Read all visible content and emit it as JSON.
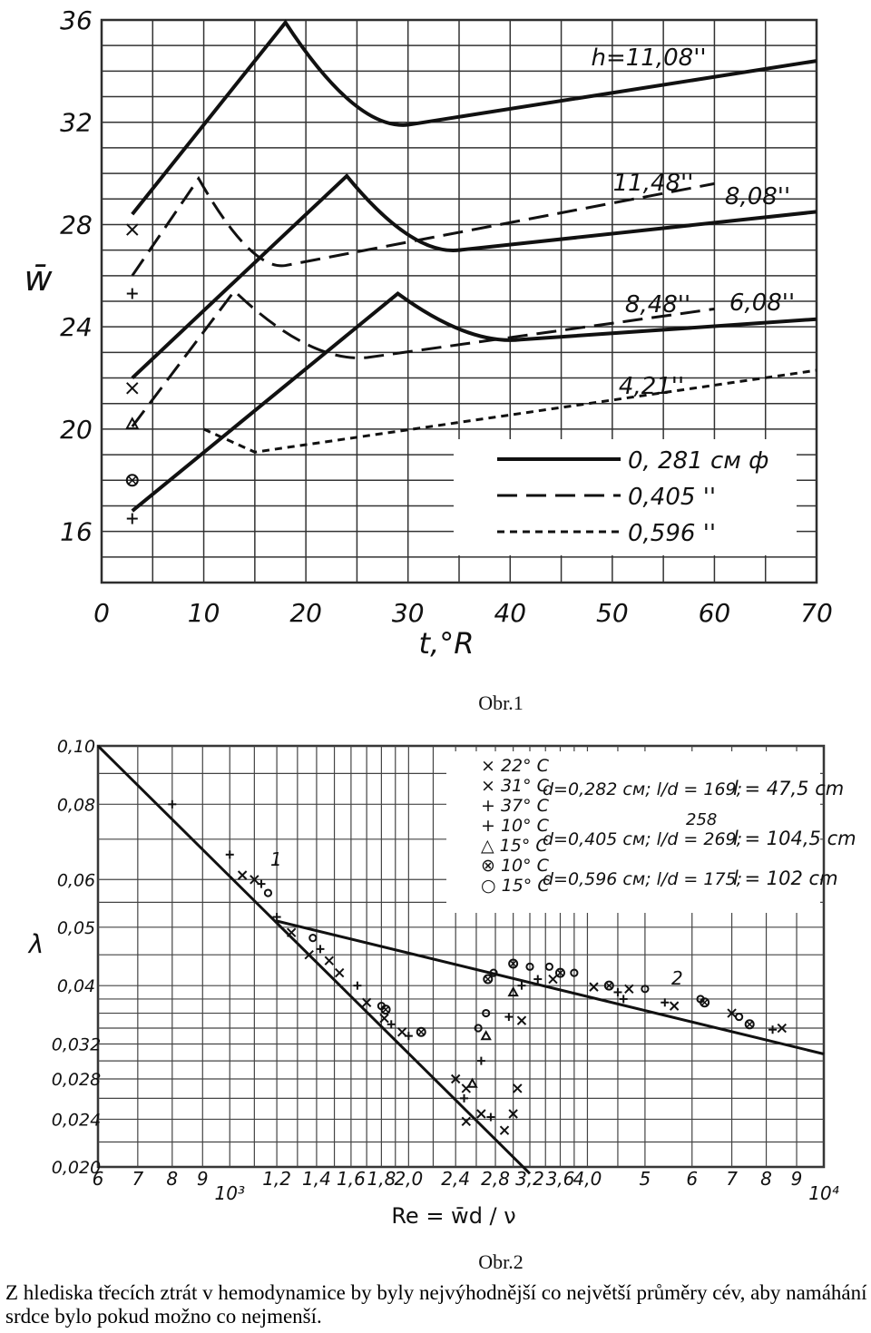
{
  "chart_data": [
    {
      "type": "line",
      "figure_label": "Obr.1",
      "xlabel": "t,°R",
      "ylabel": "w̄",
      "xlim": [
        0,
        70
      ],
      "ylim": [
        14,
        36
      ],
      "x_ticks": [
        "0",
        "10",
        "20",
        "30",
        "40",
        "50",
        "60",
        "70"
      ],
      "y_ticks": [
        "16",
        "20",
        "24",
        "28",
        "32",
        "36"
      ],
      "grid": true,
      "legend_position": "bottom-right",
      "legend": [
        {
          "style": "solid",
          "label": "0, 281 см ф"
        },
        {
          "style": "dashed",
          "label": "0,405 ''"
        },
        {
          "style": "dotted",
          "label": "0,596 ''"
        }
      ],
      "series": [
        {
          "style": "solid",
          "label": "h=11,08''",
          "x": [
            3,
            18,
            30,
            70
          ],
          "y": [
            28.4,
            35.9,
            31.9,
            34.4
          ]
        },
        {
          "style": "dashed",
          "label": "11,48''",
          "x": [
            3,
            9.5,
            18,
            60
          ],
          "y": [
            26.0,
            29.8,
            26.4,
            29.6
          ]
        },
        {
          "style": "solid",
          "label": "8,08''",
          "x": [
            3,
            24,
            35,
            70
          ],
          "y": [
            22.0,
            29.9,
            27.0,
            28.5
          ]
        },
        {
          "style": "dashed",
          "label": "8,48''",
          "x": [
            3,
            13,
            26,
            60
          ],
          "y": [
            20.1,
            25.4,
            22.8,
            24.7
          ]
        },
        {
          "style": "solid",
          "label": "6,08''",
          "x": [
            3,
            29,
            41,
            70
          ],
          "y": [
            16.8,
            25.3,
            23.5,
            24.3
          ]
        },
        {
          "style": "dotted",
          "label": "4,21''",
          "x": [
            10,
            15,
            70
          ],
          "y": [
            20.0,
            19.1,
            22.3
          ]
        }
      ],
      "markers": [
        {
          "symbol": "×",
          "x": 3,
          "y": 27.8
        },
        {
          "symbol": "+",
          "x": 3,
          "y": 25.3
        },
        {
          "symbol": "×",
          "x": 3,
          "y": 21.6
        },
        {
          "symbol": "△",
          "x": 3,
          "y": 20.2
        },
        {
          "symbol": "⊗",
          "x": 3,
          "y": 18.0
        },
        {
          "symbol": "+",
          "x": 3,
          "y": 16.5
        }
      ]
    },
    {
      "type": "scatter",
      "figure_label": "Obr.2",
      "xlabel": "Re = w̄d / ν",
      "ylabel": "λ",
      "x_scale": "log",
      "y_scale": "log",
      "xlim": [
        600,
        10000
      ],
      "ylim": [
        0.02,
        0.1
      ],
      "x_ticks": [
        "6",
        "7",
        "8",
        "9",
        "10³",
        "1,2",
        "1,4",
        "1,6",
        "1,8",
        "2,0",
        "2,4",
        "2,8",
        "3,2",
        "3,6",
        "4,0",
        "5",
        "6",
        "7",
        "8",
        "9",
        "10⁴"
      ],
      "y_ticks": [
        "0,10",
        "0,08",
        "0,06",
        "0,05",
        "0,04",
        "0,032",
        "0,028",
        "0,024",
        "0,020"
      ],
      "grid": true,
      "legend_position": "top-right",
      "legend_groups": [
        {
          "markers": [
            "× 22° C",
            "× 31° C",
            "+ 37° C"
          ],
          "desc": "d=0,282 см;  l/d = 169;",
          "note": "l = 47,5 cm"
        },
        {
          "markers": [
            "+ 10° C",
            "△ 15° C"
          ],
          "desc": "d=0,405 см;  l/d = 269;",
          "note": "l = 104,5 cm",
          "extra": "258"
        },
        {
          "markers": [
            "⊗ 10° C",
            "○ 15° C"
          ],
          "desc": "d=0,596 см;  l/d = 175;",
          "note": "l = 102 cm"
        }
      ],
      "lines": [
        {
          "label": "1",
          "x": [
            600,
            3200
          ],
          "y": [
            0.1,
            0.0195
          ]
        },
        {
          "label": "2",
          "x": [
            1200,
            10000
          ],
          "y": [
            0.0512,
            0.0308
          ]
        }
      ],
      "points": [
        {
          "s": "+",
          "x": 800,
          "y": 0.08
        },
        {
          "s": "+",
          "x": 1000,
          "y": 0.066
        },
        {
          "s": "×",
          "x": 1050,
          "y": 0.061
        },
        {
          "s": "×",
          "x": 1100,
          "y": 0.06
        },
        {
          "s": "+",
          "x": 1130,
          "y": 0.059
        },
        {
          "s": "○",
          "x": 1160,
          "y": 0.057
        },
        {
          "s": "+",
          "x": 1200,
          "y": 0.052
        },
        {
          "s": "×",
          "x": 1270,
          "y": 0.049
        },
        {
          "s": "○",
          "x": 1380,
          "y": 0.048
        },
        {
          "s": "×",
          "x": 1360,
          "y": 0.045
        },
        {
          "s": "+",
          "x": 1420,
          "y": 0.046
        },
        {
          "s": "×",
          "x": 1470,
          "y": 0.044
        },
        {
          "s": "×",
          "x": 1530,
          "y": 0.042
        },
        {
          "s": "+",
          "x": 1640,
          "y": 0.04
        },
        {
          "s": "×",
          "x": 1700,
          "y": 0.0375
        },
        {
          "s": "○",
          "x": 1800,
          "y": 0.037
        },
        {
          "s": "⊗",
          "x": 1830,
          "y": 0.0365
        },
        {
          "s": "×",
          "x": 1820,
          "y": 0.0353
        },
        {
          "s": "+",
          "x": 1870,
          "y": 0.0345
        },
        {
          "s": "×",
          "x": 1950,
          "y": 0.0335
        },
        {
          "s": "+",
          "x": 2000,
          "y": 0.033
        },
        {
          "s": "⊗",
          "x": 2100,
          "y": 0.0335
        },
        {
          "s": "×",
          "x": 2400,
          "y": 0.028
        },
        {
          "s": "×",
          "x": 2500,
          "y": 0.027
        },
        {
          "s": "+",
          "x": 2480,
          "y": 0.026
        },
        {
          "s": "△",
          "x": 2560,
          "y": 0.0275
        },
        {
          "s": "×",
          "x": 2650,
          "y": 0.0245
        },
        {
          "s": "×",
          "x": 2500,
          "y": 0.0238
        },
        {
          "s": "+",
          "x": 2750,
          "y": 0.0242
        },
        {
          "s": "×",
          "x": 2900,
          "y": 0.023
        },
        {
          "s": "×",
          "x": 3000,
          "y": 0.0245
        },
        {
          "s": "×",
          "x": 3050,
          "y": 0.027
        },
        {
          "s": "○",
          "x": 2620,
          "y": 0.034
        },
        {
          "s": "○",
          "x": 2700,
          "y": 0.036
        },
        {
          "s": "⊗",
          "x": 2720,
          "y": 0.041
        },
        {
          "s": "○",
          "x": 2780,
          "y": 0.042
        },
        {
          "s": "△",
          "x": 2700,
          "y": 0.033
        },
        {
          "s": "+",
          "x": 2650,
          "y": 0.03
        },
        {
          "s": "+",
          "x": 2950,
          "y": 0.0355
        },
        {
          "s": "×",
          "x": 3100,
          "y": 0.035
        },
        {
          "s": "+",
          "x": 3100,
          "y": 0.04
        },
        {
          "s": "△",
          "x": 3000,
          "y": 0.039
        },
        {
          "s": "⊗",
          "x": 3000,
          "y": 0.0435
        },
        {
          "s": "○",
          "x": 3200,
          "y": 0.043
        },
        {
          "s": "○",
          "x": 3450,
          "y": 0.043
        },
        {
          "s": "+",
          "x": 3300,
          "y": 0.041
        },
        {
          "s": "×",
          "x": 3500,
          "y": 0.041
        },
        {
          "s": "⊗",
          "x": 3600,
          "y": 0.042
        },
        {
          "s": "○",
          "x": 3800,
          "y": 0.042
        },
        {
          "s": "×",
          "x": 4100,
          "y": 0.0398
        },
        {
          "s": "⊗",
          "x": 4350,
          "y": 0.04
        },
        {
          "s": "+",
          "x": 4500,
          "y": 0.039
        },
        {
          "s": "×",
          "x": 4700,
          "y": 0.0395
        },
        {
          "s": "○",
          "x": 5000,
          "y": 0.0395
        },
        {
          "s": "+",
          "x": 4600,
          "y": 0.038
        },
        {
          "s": "×",
          "x": 5600,
          "y": 0.037
        },
        {
          "s": "+",
          "x": 5400,
          "y": 0.0375
        },
        {
          "s": "○",
          "x": 6200,
          "y": 0.038
        },
        {
          "s": "⊗",
          "x": 6300,
          "y": 0.0375
        },
        {
          "s": "×",
          "x": 7000,
          "y": 0.036
        },
        {
          "s": "⊗",
          "x": 7500,
          "y": 0.0345
        },
        {
          "s": "○",
          "x": 7200,
          "y": 0.0355
        },
        {
          "s": "+",
          "x": 8200,
          "y": 0.0338
        },
        {
          "s": "×",
          "x": 8500,
          "y": 0.034
        }
      ]
    }
  ],
  "labels": {
    "fig1": "Obr.1",
    "fig2": "Obr.2",
    "curve_labels": [
      "h=11,08''",
      "11,48''",
      "8,08''",
      "8,48''",
      "6,08''",
      "4,21''"
    ],
    "fig2_line1": "1",
    "fig2_line2": "2"
  },
  "caption": "Z hlediska třecích ztrát v hemodynamice by byly nejvýhodnější co největší průměry cév, aby namáhání srdce bylo pokud možno co nejmenší."
}
